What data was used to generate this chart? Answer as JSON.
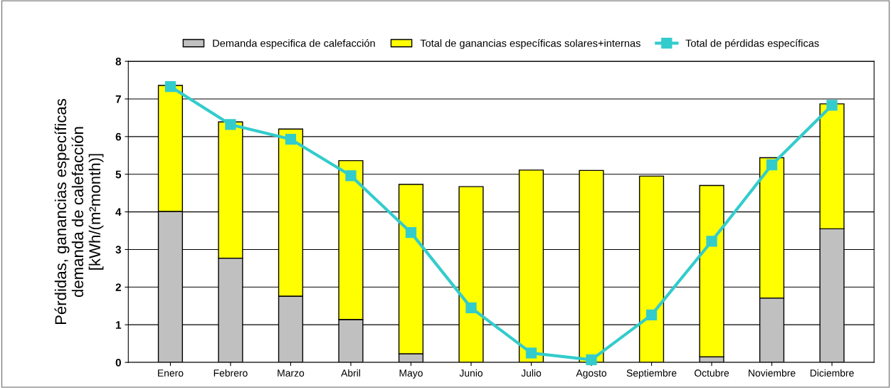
{
  "chart_data": {
    "type": "bar",
    "stacked": true,
    "categories": [
      "Enero",
      "Febrero",
      "Marzo",
      "Abril",
      "Mayo",
      "Junio",
      "Julio",
      "Agosto",
      "Septiembre",
      "Octubre",
      "Noviembre",
      "Diciembre"
    ],
    "series": [
      {
        "name": "Demanda especifica de calefacción",
        "color": "#c0c0c0",
        "values": [
          4.01,
          2.77,
          1.76,
          1.14,
          0.23,
          0,
          0,
          0,
          0,
          0.15,
          1.71,
          3.55
        ]
      },
      {
        "name": "Total de ganancias específicas solares+internas",
        "color": "#ffff00",
        "values": [
          3.35,
          3.62,
          4.44,
          4.22,
          4.5,
          4.67,
          5.11,
          5.1,
          4.95,
          4.55,
          3.73,
          3.32
        ]
      },
      {
        "name": "Total de pérdidas específicas",
        "type": "line",
        "color": "#33cccc",
        "marker": "square",
        "values": [
          7.33,
          6.32,
          5.93,
          4.96,
          3.45,
          1.45,
          0.25,
          0.07,
          1.26,
          3.22,
          5.25,
          6.83
        ]
      }
    ],
    "ylabel": "Pérdidas, ganancias específicas\ndemanda de calefacción\n[kWh/(m²month)]",
    "ylim": [
      0,
      8
    ],
    "yticks": [
      0,
      1,
      2,
      3,
      4,
      5,
      6,
      7,
      8
    ],
    "grid": "y",
    "legend": "top"
  }
}
